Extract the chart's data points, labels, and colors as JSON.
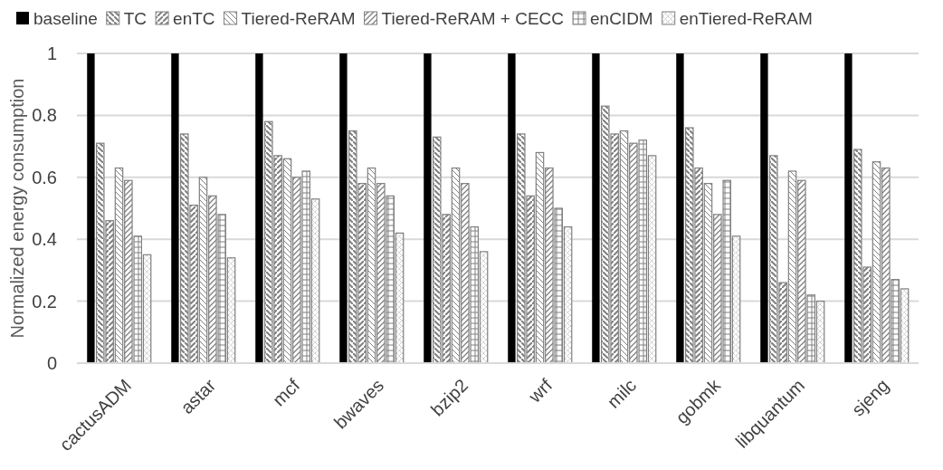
{
  "chart_data": {
    "type": "bar",
    "ylabel": "Normalized energy consumption",
    "categories": [
      "cactusADM",
      "astar",
      "mcf",
      "bwaves",
      "bzip2",
      "wrf",
      "milc",
      "gobmk",
      "libquantum",
      "sjeng"
    ],
    "series": [
      {
        "name": "baseline",
        "color": "#000000",
        "values": [
          1,
          1,
          1,
          1,
          1,
          1,
          1,
          1,
          1,
          1
        ]
      },
      {
        "name": "TC",
        "color": "#808080",
        "values": [
          0.71,
          0.74,
          0.78,
          0.75,
          0.73,
          0.74,
          0.83,
          0.76,
          0.67,
          0.69
        ]
      },
      {
        "name": "enTC",
        "color": "#808080",
        "values": [
          0.46,
          0.51,
          0.67,
          0.58,
          0.48,
          0.54,
          0.74,
          0.63,
          0.26,
          0.31
        ]
      },
      {
        "name": "Tiered-ReRAM",
        "color": "#808080",
        "values": [
          0.63,
          0.6,
          0.66,
          0.63,
          0.63,
          0.68,
          0.75,
          0.58,
          0.62,
          0.65
        ]
      },
      {
        "name": "Tiered-ReRAM + CECC",
        "color": "#808080",
        "values": [
          0.59,
          0.54,
          0.6,
          0.58,
          0.58,
          0.63,
          0.71,
          0.48,
          0.59,
          0.63
        ]
      },
      {
        "name": "enCIDM",
        "color": "#808080",
        "values": [
          0.41,
          0.48,
          0.62,
          0.54,
          0.44,
          0.5,
          0.72,
          0.59,
          0.22,
          0.27
        ]
      },
      {
        "name": "enTiered-ReRAM",
        "color": "#808080",
        "values": [
          0.35,
          0.34,
          0.53,
          0.42,
          0.36,
          0.44,
          0.67,
          0.41,
          0.2,
          0.24
        ]
      }
    ],
    "ylim": [
      0,
      1
    ],
    "yticks": [
      0,
      0.2,
      0.4,
      0.6,
      0.8,
      1
    ],
    "grid": "y",
    "legend": "top"
  }
}
